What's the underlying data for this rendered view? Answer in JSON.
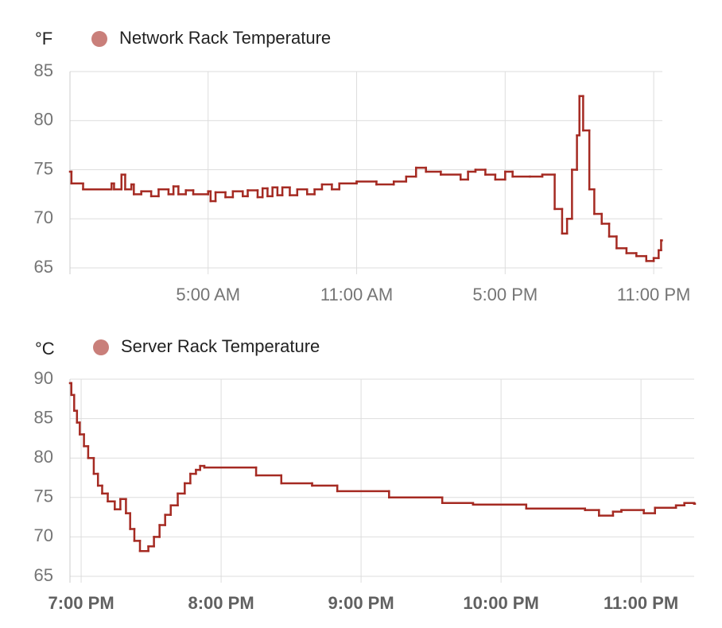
{
  "chart_data": [
    {
      "type": "line",
      "step": true,
      "y_unit": "°F",
      "series": [
        {
          "name": "Network Rack Temperature",
          "color": "#a52a22",
          "x": [
            -0.58,
            -0.52,
            -0.05,
            1.1,
            1.2,
            1.5,
            1.65,
            1.9,
            2.0,
            2.3,
            2.7,
            3.0,
            3.4,
            3.6,
            3.8,
            4.1,
            4.4,
            5.0,
            5.1,
            5.3,
            5.7,
            6.0,
            6.4,
            6.6,
            7.0,
            7.2,
            7.4,
            7.6,
            7.8,
            8.0,
            8.3,
            8.6,
            9.0,
            9.3,
            9.6,
            10.0,
            10.3,
            11.0,
            11.8,
            12.5,
            13.0,
            13.4,
            13.8,
            14.4,
            15.2,
            15.5,
            15.8,
            16.2,
            16.6,
            17.0,
            17.3,
            18.0,
            18.5,
            19.0,
            19.3,
            19.5,
            19.7,
            19.9,
            20.0,
            20.15,
            20.4,
            20.6,
            20.9,
            21.2,
            21.5,
            21.9,
            22.3,
            22.7,
            23.0,
            23.2,
            23.3
          ],
          "values": [
            74.8,
            73.6,
            73.0,
            73.6,
            73.0,
            74.5,
            73.0,
            73.5,
            72.5,
            72.8,
            72.3,
            73.0,
            72.5,
            73.3,
            72.5,
            72.9,
            72.5,
            72.8,
            71.8,
            72.7,
            72.2,
            72.8,
            72.3,
            72.9,
            72.2,
            73.1,
            72.3,
            73.2,
            72.4,
            73.2,
            72.4,
            73.0,
            72.5,
            73.0,
            73.5,
            73.0,
            73.6,
            73.8,
            73.5,
            73.8,
            74.3,
            75.2,
            74.8,
            74.5,
            74.0,
            74.8,
            75.0,
            74.5,
            74.0,
            74.8,
            74.3,
            74.3,
            74.5,
            71.0,
            68.5,
            70.0,
            75.0,
            78.5,
            82.5,
            79.0,
            73.0,
            70.5,
            69.5,
            68.2,
            67.0,
            66.5,
            66.2,
            65.7,
            66.0,
            66.8,
            67.8
          ]
        }
      ],
      "xlim": [
        -0.58,
        23.35
      ],
      "xticks": [
        {
          "value": 5,
          "label": "5:00 AM"
        },
        {
          "value": 11,
          "label": "11:00 AM"
        },
        {
          "value": 17,
          "label": "5:00 PM"
        },
        {
          "value": 23,
          "label": "11:00 PM"
        }
      ],
      "ylim": [
        65,
        85
      ],
      "yticks": [
        65,
        70,
        75,
        80,
        85
      ],
      "grid": true
    },
    {
      "type": "line",
      "step": true,
      "y_unit": "°C",
      "series": [
        {
          "name": "Server Rack Temperature",
          "color": "#a52a22",
          "x": [
            18.92,
            18.93,
            18.95,
            18.97,
            18.99,
            19.02,
            19.05,
            19.09,
            19.12,
            19.15,
            19.19,
            19.24,
            19.28,
            19.32,
            19.35,
            19.38,
            19.42,
            19.48,
            19.52,
            19.56,
            19.6,
            19.64,
            19.69,
            19.74,
            19.78,
            19.82,
            19.85,
            19.88,
            20.25,
            20.43,
            20.65,
            20.83,
            21.2,
            21.58,
            21.8,
            22.18,
            22.6,
            22.7,
            22.8,
            22.86,
            23.02,
            23.1,
            23.25,
            23.31,
            23.38
          ],
          "values": [
            89.5,
            88,
            86,
            84.5,
            83,
            81.5,
            80,
            78,
            76.5,
            75.5,
            74.5,
            73.5,
            74.8,
            73,
            71,
            69.5,
            68.2,
            68.8,
            70,
            71.5,
            72.8,
            74,
            75.5,
            76.8,
            78,
            78.5,
            79,
            78.8,
            77.8,
            76.8,
            76.5,
            75.8,
            75,
            74.3,
            74.1,
            73.6,
            73.4,
            72.7,
            73.2,
            73.4,
            73.0,
            73.7,
            74,
            74.3,
            74.2
          ]
        }
      ],
      "xlim": [
        18.92,
        23.38
      ],
      "xticks": [
        {
          "value": 19,
          "label": "7:00 PM"
        },
        {
          "value": 20,
          "label": "8:00 PM"
        },
        {
          "value": 21,
          "label": "9:00 PM"
        },
        {
          "value": 22,
          "label": "10:00 PM"
        },
        {
          "value": 23,
          "label": "11:00 PM"
        }
      ],
      "ylim": [
        65,
        90
      ],
      "yticks": [
        65,
        70,
        75,
        80,
        85,
        90
      ],
      "grid": true
    }
  ]
}
